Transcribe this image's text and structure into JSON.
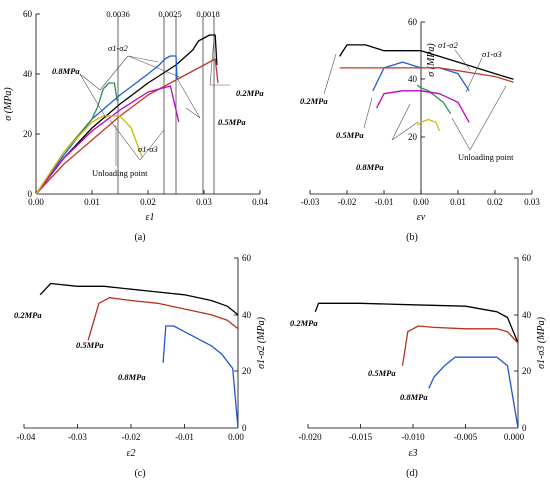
{
  "panels": [
    {
      "label": "(a)",
      "xlabel": "ε1",
      "ylabel": "σ (MPa)",
      "xticks": [
        "0.00",
        "0.01",
        "0.02",
        "0.03",
        "0.04"
      ],
      "yticks": [
        "0",
        "20",
        "40",
        "60"
      ],
      "annotations": {
        "strain_a": "0.0036",
        "strain_b": "0.0025",
        "strain_c": "0.0018",
        "s1s2": "σ1-σ2",
        "s1s3": "σ1-σ3",
        "p08": "0.8MPa",
        "p02": "0.2MPa",
        "p05": "0.5MPa",
        "unloading": "Unloading point"
      }
    },
    {
      "label": "(b)",
      "xlabel": "εv",
      "ylabel": "σ (MPa)",
      "xticks": [
        "-0.03",
        "-0.02",
        "-0.01",
        "0.00",
        "0.01",
        "0.02",
        "0.03"
      ],
      "yticks": [
        "20",
        "40",
        "60"
      ],
      "annotations": {
        "s1s2": "σ1-σ2",
        "s1s3": "σ1-σ3",
        "p02": "0.2MPa",
        "p05": "0.5MPa",
        "p08": "0.8MPa",
        "unloading": "Unloading point"
      }
    },
    {
      "label": "(c)",
      "xlabel": "ε2",
      "ylabel": "σ1-σ2 (MPa)",
      "xticks": [
        "-0.04",
        "-0.03",
        "-0.02",
        "-0.01",
        "0.00"
      ],
      "yticks": [
        "0",
        "20",
        "40",
        "60"
      ],
      "annotations": {
        "p02": "0.2MPa",
        "p05": "0.5MPa",
        "p08": "0.8MPa"
      }
    },
    {
      "label": "(d)",
      "xlabel": "ε3",
      "ylabel": "σ1-σ3 (MPa)",
      "xticks": [
        "-0.020",
        "-0.015",
        "-0.010",
        "-0.005",
        "0.000"
      ],
      "yticks": [
        "0",
        "20",
        "40",
        "60"
      ],
      "annotations": {
        "p02": "0.2MPa",
        "p05": "0.5MPa",
        "p08": "0.8MPa"
      }
    }
  ],
  "colors": {
    "p02_s1s2": "#000000",
    "p05_s1s2": "#1f5fd6",
    "p08_s1s2": "#2e8b57",
    "p02_s1s3": "#c0392b",
    "p05_s1s3": "#c000c0",
    "p08_s1s3": "#d4b800",
    "c_p02": "#000000",
    "c_p05": "#b5331c",
    "c_p08": "#2255cc"
  },
  "chart_data": [
    {
      "type": "line",
      "title": "(a)",
      "xlabel": "ε1",
      "ylabel": "σ (MPa)",
      "xlim": [
        0,
        0.04
      ],
      "ylim": [
        0,
        60
      ],
      "series": [
        {
          "name": "0.2MPa",
          "x": [
            0,
            0.005,
            0.01,
            0.015,
            0.02,
            0.025,
            0.028,
            0.029,
            0.03,
            0.031,
            0.032,
            0.0323
          ],
          "y": [
            0,
            12,
            22,
            30,
            37,
            43,
            48,
            51,
            52,
            53,
            53,
            43
          ]
        },
        {
          "name": "0.5MPa",
          "x": [
            0,
            0.005,
            0.01,
            0.015,
            0.02,
            0.022,
            0.023,
            0.024,
            0.025,
            0.0252
          ],
          "y": [
            0,
            13,
            25,
            33,
            40,
            43,
            45,
            46,
            46,
            38
          ]
        },
        {
          "name": "0.8MPa",
          "x": [
            0,
            0.005,
            0.01,
            0.011,
            0.012,
            0.013,
            0.014,
            0.0145
          ],
          "y": [
            0,
            14,
            25,
            29,
            35,
            37,
            37,
            31
          ]
        },
        {
          "name": "0.2MPa",
          "x": [
            0,
            0.005,
            0.01,
            0.015,
            0.02,
            0.025,
            0.03,
            0.032,
            0.0325
          ],
          "y": [
            0,
            10,
            18,
            26,
            33,
            38,
            43,
            45,
            37
          ]
        },
        {
          "name": "0.5MPa",
          "x": [
            0,
            0.005,
            0.01,
            0.015,
            0.02,
            0.024,
            0.0255
          ],
          "y": [
            0,
            12,
            21,
            28,
            34,
            36,
            24
          ]
        },
        {
          "name": "0.8MPa",
          "x": [
            0,
            0.005,
            0.01,
            0.012,
            0.015,
            0.017,
            0.019
          ],
          "y": [
            0,
            14,
            24,
            26,
            26,
            22,
            12
          ]
        }
      ]
    },
    {
      "type": "line",
      "title": "(b)",
      "xlabel": "εv",
      "ylabel": "σ (MPa)",
      "xlim": [
        -0.03,
        0.03
      ],
      "ylim": [
        0,
        60
      ],
      "series": [
        {
          "name": "0.2MPa",
          "x": [
            -0.022,
            -0.02,
            -0.015,
            -0.01,
            -0.005,
            0,
            0.005,
            0.01,
            0.015,
            0.02,
            0.025
          ],
          "y": [
            48,
            52,
            52,
            50,
            50,
            50,
            48,
            46,
            44,
            42,
            40
          ]
        },
        {
          "name": "0.5MPa",
          "x": [
            -0.013,
            -0.01,
            -0.005,
            0,
            0.005,
            0.01,
            0.013
          ],
          "y": [
            36,
            44,
            46,
            44,
            44,
            42,
            36
          ]
        },
        {
          "name": "0.8MPa",
          "x": [
            -0.001,
            0,
            0.002,
            0.004,
            0.006,
            0.008
          ],
          "y": [
            38,
            37,
            36,
            34,
            32,
            28
          ]
        },
        {
          "name": "0.2MPa",
          "x": [
            -0.022,
            -0.015,
            -0.01,
            -0.005,
            0,
            0.005,
            0.01,
            0.015,
            0.02,
            0.025
          ],
          "y": [
            44,
            44,
            44,
            44,
            44,
            44,
            43,
            42,
            41,
            39
          ]
        },
        {
          "name": "0.5MPa",
          "x": [
            -0.012,
            -0.01,
            -0.005,
            0,
            0.005,
            0.01,
            0.013
          ],
          "y": [
            30,
            35,
            36,
            36,
            35,
            32,
            25
          ]
        },
        {
          "name": "0.8MPa",
          "x": [
            -0.001,
            0,
            0.002,
            0.004,
            0.005
          ],
          "y": [
            24,
            25,
            26,
            25,
            22
          ]
        }
      ]
    },
    {
      "type": "line",
      "title": "(c)",
      "xlabel": "ε2",
      "ylabel": "σ1-σ2 (MPa)",
      "xlim": [
        -0.04,
        0
      ],
      "ylim": [
        0,
        60
      ],
      "series": [
        {
          "name": "0.2MPa",
          "x": [
            -0.037,
            -0.035,
            -0.03,
            -0.025,
            -0.02,
            -0.015,
            -0.01,
            -0.005,
            -0.002,
            0
          ],
          "y": [
            47,
            51,
            50,
            50,
            49,
            48,
            47,
            45,
            43,
            40
          ]
        },
        {
          "name": "0.5MPa",
          "x": [
            -0.028,
            -0.026,
            -0.024,
            -0.02,
            -0.015,
            -0.01,
            -0.005,
            -0.002,
            0
          ],
          "y": [
            31,
            44,
            46,
            45,
            44,
            42,
            40,
            38,
            35
          ]
        },
        {
          "name": "0.8MPa",
          "x": [
            -0.014,
            -0.0135,
            -0.012,
            -0.01,
            -0.008,
            -0.005,
            -0.003,
            -0.001,
            0
          ],
          "y": [
            23,
            36,
            36,
            34,
            32,
            29,
            26,
            21,
            0
          ]
        }
      ]
    },
    {
      "type": "line",
      "title": "(d)",
      "xlabel": "ε3",
      "ylabel": "σ1-σ3 (MPa)",
      "xlim": [
        -0.02,
        0
      ],
      "ylim": [
        0,
        60
      ],
      "series": [
        {
          "name": "0.2MPa",
          "x": [
            -0.0193,
            -0.019,
            -0.015,
            -0.01,
            -0.005,
            -0.002,
            -0.001,
            0
          ],
          "y": [
            41,
            44,
            44,
            43.5,
            43,
            41,
            39,
            30
          ]
        },
        {
          "name": "0.5MPa",
          "x": [
            -0.011,
            -0.0105,
            -0.0095,
            -0.008,
            -0.005,
            -0.002,
            -0.001,
            0
          ],
          "y": [
            22,
            34,
            36,
            35.5,
            35,
            35,
            34,
            30
          ]
        },
        {
          "name": "0.8MPa",
          "x": [
            -0.0085,
            -0.008,
            -0.007,
            -0.006,
            -0.004,
            -0.002,
            -0.001,
            0
          ],
          "y": [
            14,
            18,
            22,
            25,
            25,
            25,
            22,
            0
          ]
        }
      ]
    }
  ]
}
